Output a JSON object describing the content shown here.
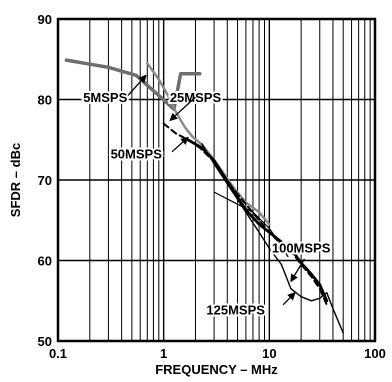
{
  "chart_data": {
    "type": "line",
    "title": "",
    "xlabel": "FREQUENCY – MHz",
    "ylabel": "SFDR – dBc",
    "xscale": "log",
    "xlim": [
      0.1,
      100
    ],
    "ylim": [
      50,
      90
    ],
    "x_ticks": [
      {
        "value": 0.1,
        "label": "0.1"
      },
      {
        "value": 1,
        "label": "1"
      },
      {
        "value": 10,
        "label": "10"
      },
      {
        "value": 100,
        "label": "100"
      }
    ],
    "y_ticks": [
      {
        "value": 50,
        "label": "50"
      },
      {
        "value": 60,
        "label": "60"
      },
      {
        "value": 70,
        "label": "70"
      },
      {
        "value": 80,
        "label": "80"
      },
      {
        "value": 90,
        "label": "90"
      }
    ],
    "grid": true,
    "series": [
      {
        "name": "5MSPS",
        "color": "#6e6e6e",
        "stroke": 3.5,
        "dash": "",
        "x": [
          0.12,
          0.3,
          0.55,
          0.9,
          1.25,
          1.45,
          1.75,
          2.2
        ],
        "y": [
          84.9,
          84,
          83,
          80.5,
          78.8,
          83.2,
          83.2,
          83.2
        ]
      },
      {
        "name": "25MSPS",
        "color": "#8a8a8a",
        "stroke": 2.5,
        "dash": "",
        "x": [
          0.7,
          0.9,
          1.1,
          1.3,
          1.6,
          1.9,
          2.3,
          3,
          4.5,
          6,
          8,
          10
        ],
        "y": [
          84.5,
          82.5,
          80.5,
          78.5,
          76.5,
          75.3,
          74.4,
          72.5,
          69.2,
          67.2,
          66,
          64.5
        ]
      },
      {
        "name": "50MSPS",
        "color": "#000000",
        "stroke": 2,
        "dash": "6,4",
        "x": [
          1.0,
          1.3,
          1.7,
          2.2,
          3,
          4.5,
          6,
          8,
          10,
          13,
          16,
          20,
          25,
          30,
          35
        ],
        "y": [
          77,
          75.8,
          75,
          74,
          72.3,
          69,
          67,
          65,
          63.5,
          62,
          61.2,
          59.5,
          58,
          56.5,
          54.5
        ]
      },
      {
        "name": "100MSPS",
        "color": "#000000",
        "stroke": 2.8,
        "dash": "",
        "x": [
          1.7,
          2.3,
          3,
          4.5,
          6,
          8,
          10,
          13,
          16,
          20,
          25,
          30,
          35
        ],
        "y": [
          75,
          74,
          72.4,
          68.8,
          66.3,
          64.5,
          63.5,
          62.3,
          61.5,
          59.7,
          58.3,
          57,
          55
        ]
      },
      {
        "name": "125MSPS",
        "color": "#000000",
        "stroke": 1.4,
        "dash": "",
        "x": [
          2.3,
          3,
          4.5,
          6,
          8,
          10,
          13,
          16,
          20,
          25,
          30,
          35,
          40,
          50
        ],
        "y": [
          74.5,
          72,
          68.5,
          66,
          63.5,
          61.5,
          59.5,
          56.5,
          55.5,
          55,
          55.3,
          56,
          54,
          51
        ]
      },
      {
        "name": "",
        "color": "#000000",
        "stroke": 1.2,
        "dash": "",
        "x": [
          3,
          5,
          7,
          10,
          12,
          15
        ],
        "y": [
          68.5,
          67,
          66,
          64,
          62.5,
          60.5
        ]
      }
    ],
    "annotations": [
      {
        "text": "5MSPS",
        "tx": 0.28,
        "ty": 79.7,
        "ax": 0.46,
        "ay": 80.5,
        "hx": 0.68,
        "hy": 83.0
      },
      {
        "text": "25MSPS",
        "tx": 2.0,
        "ty": 79.7,
        "ax": 2.0,
        "ay": 80.3,
        "hx": 1.15,
        "hy": 77.4
      },
      {
        "text": "50MSPS",
        "tx": 0.55,
        "ty": 72.7,
        "ax": 1.2,
        "ay": 73.5,
        "hx": 1.7,
        "hy": 75.3
      },
      {
        "text": "100MSPS",
        "tx": 20.0,
        "ty": 61.0,
        "ax": 21.5,
        "ay": 60.2,
        "hx": 16.0,
        "hy": 57.4
      },
      {
        "text": "125MSPS",
        "tx": 4.8,
        "ty": 53.3,
        "ax": 13.5,
        "ay": 54.5,
        "hx": 17.5,
        "hy": 56.0
      }
    ]
  }
}
